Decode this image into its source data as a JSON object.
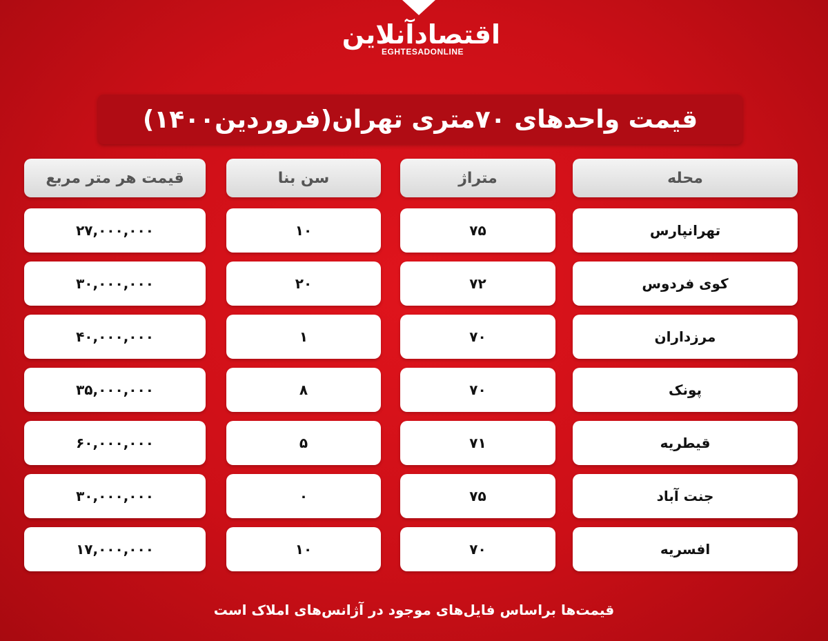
{
  "logo": {
    "text_fa": "اقتصادآنلاین",
    "text_en": "EGHTESADONLINE"
  },
  "title": "قیمت واحدهای ۷۰متری تهران(فروردین۱۴۰۰)",
  "columns": [
    "محله",
    "متراژ",
    "سن بنا",
    "قیمت هر متر مربع"
  ],
  "rows": [
    [
      "تهرانپارس",
      "۷۵",
      "۱۰",
      "۲۷,۰۰۰,۰۰۰"
    ],
    [
      "کوی فردوس",
      "۷۲",
      "۲۰",
      "۳۰,۰۰۰,۰۰۰"
    ],
    [
      "مرزداران",
      "۷۰",
      "۱",
      "۴۰,۰۰۰,۰۰۰"
    ],
    [
      "پونک",
      "۷۰",
      "۸",
      "۳۵,۰۰۰,۰۰۰"
    ],
    [
      "قیطریه",
      "۷۱",
      "۵",
      "۶۰,۰۰۰,۰۰۰"
    ],
    [
      "جنت آباد",
      "۷۵",
      "۰",
      "۳۰,۰۰۰,۰۰۰"
    ],
    [
      "افسریه",
      "۷۰",
      "۱۰",
      "۱۷,۰۰۰,۰۰۰"
    ]
  ],
  "footer": "قیمت‌ها براساس فایل‌های موجود در آژانس‌های املاک است",
  "colors": {
    "background": "#cc0f17",
    "title_box": "#b00c14",
    "cell": "#ffffff"
  }
}
